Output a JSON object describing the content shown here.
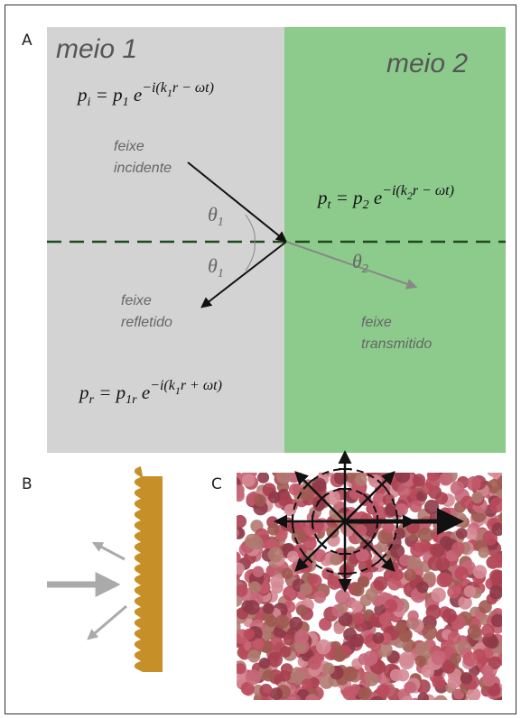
{
  "panel_labels": [
    "A",
    "B",
    "C"
  ],
  "media": [
    "meio 1",
    "meio 2"
  ],
  "beams": {
    "incident": [
      "feixe",
      "incidente"
    ],
    "reflected": [
      "feixe",
      "refletido"
    ],
    "transmitted": [
      "feixe",
      "transmitido"
    ]
  },
  "angles": [
    [
      "θ",
      "1"
    ],
    [
      "θ",
      "1"
    ],
    [
      "θ",
      "2"
    ]
  ],
  "equations": {
    "incident": [
      "p",
      "i",
      " = ",
      "p",
      "1",
      " e",
      "−i(k",
      "1",
      "r − ωt)"
    ],
    "transmitted": [
      "p",
      "t",
      " = ",
      "p",
      "2",
      " e",
      "−i(k",
      "2",
      "r − ωt)"
    ],
    "reflected": [
      "p",
      "r",
      " = ",
      "p",
      "1r",
      " e",
      "−i(k",
      "1",
      "r + ωt)"
    ]
  }
}
